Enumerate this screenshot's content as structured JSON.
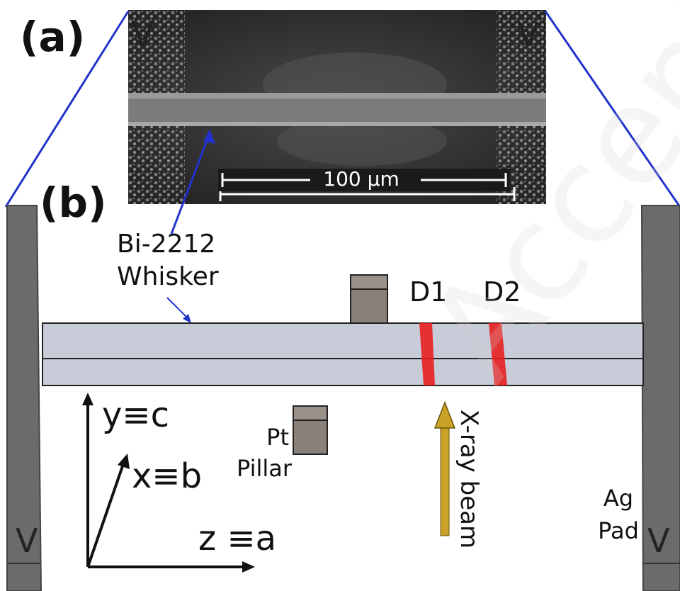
{
  "panels": {
    "a": "(a)",
    "b": "(b)"
  },
  "voltage_labels": {
    "top_left": "V",
    "top_right": "V",
    "bottom_left": "V",
    "bottom_right": "V"
  },
  "scale_bar": "100 μm",
  "whisker_label": [
    "Bi-2212",
    "Whisker"
  ],
  "domains": {
    "d1": "D1",
    "d2": "D2"
  },
  "axes": {
    "y": "y≡c",
    "x": "x≡b",
    "z": "z ≡a"
  },
  "pillar_label": [
    "Pt",
    "Pillar"
  ],
  "beam_label": "X-ray beam",
  "pad_label": [
    "Ag",
    "Pad"
  ],
  "watermark": "Accepted manuscript",
  "colors": {
    "whisker": "#c8ccd9",
    "domain": "#e82020",
    "beam": "#c9a227",
    "pillar": "#8a807a",
    "pad": "#6b6b6b",
    "zoom_lines": "#2233cc",
    "pointer": "#2233cc"
  }
}
